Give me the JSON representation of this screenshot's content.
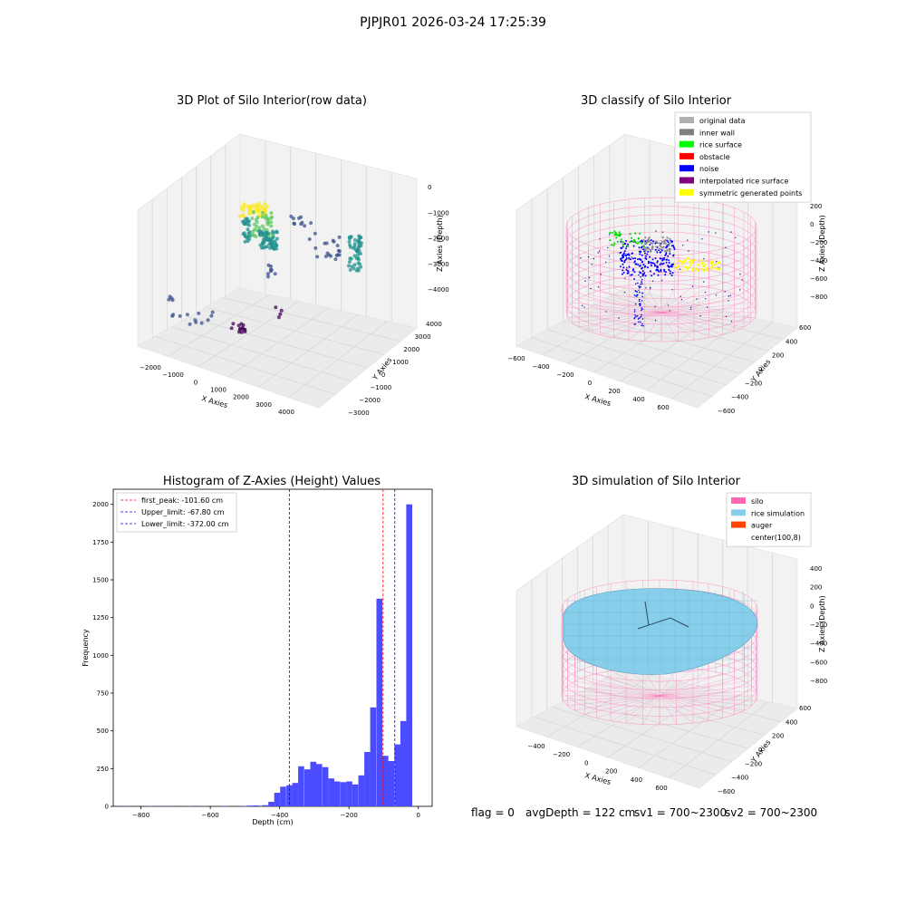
{
  "page": {
    "title": "PJPJR01 2026-03-24 17:25:39"
  },
  "footer": {
    "flag": "flag = 0",
    "avg_depth": "avgDepth = 122 cm",
    "sv1": "sv1 = 700~2300",
    "sv2": "sv2 = 700~2300"
  },
  "chart_data": [
    {
      "type": "scatter",
      "title": "3D Plot of Silo Interior(row data)",
      "xlabel": "X Axies",
      "ylabel": "Y Axies",
      "zlabel": "Z Axies (Depth)",
      "xticks": [
        "−2000",
        "−1000",
        "0",
        "1000",
        "2000",
        "3000",
        "4000"
      ],
      "yticks": [
        "−3000",
        "−2000",
        "−1000",
        "0",
        "1000",
        "2000",
        "3000",
        "4000"
      ],
      "zticks": [
        "0",
        "−1000",
        "−2000",
        "−3000",
        "−4000"
      ],
      "colormap": "viridis"
    },
    {
      "type": "scatter",
      "title": "3D classify of Silo Interior",
      "xlabel": "X Axies",
      "ylabel": "Y Axies",
      "zlabel": "Z Axies (Depth)",
      "xticks": [
        "−600",
        "−400",
        "−200",
        "0",
        "200",
        "400",
        "600"
      ],
      "yticks": [
        "−600",
        "−400",
        "−200",
        "0",
        "200",
        "400",
        "600"
      ],
      "zticks": [
        "200",
        "0",
        "−200",
        "−400",
        "−600",
        "−800"
      ],
      "legend_placement": "top-right",
      "legend": [
        {
          "name": "original data",
          "color": "#b0b0b0"
        },
        {
          "name": "inner wall",
          "color": "#808080"
        },
        {
          "name": "rice surface",
          "color": "#00ff00"
        },
        {
          "name": "obstacle",
          "color": "#ff0000"
        },
        {
          "name": "noise",
          "color": "#0000ff"
        },
        {
          "name": "interpolated rice surface",
          "color": "#800080"
        },
        {
          "name": "symmetric generated points",
          "color": "#ffff00"
        }
      ]
    },
    {
      "type": "bar",
      "title": "Histogram of Z-Axies (Height) Values",
      "xlabel": "Depth (cm)",
      "ylabel": "Frequency",
      "xlim": [
        -880,
        40
      ],
      "ylim": [
        0,
        2100
      ],
      "xticks": [
        "−800",
        "−600",
        "−400",
        "−200",
        "0"
      ],
      "yticks": [
        "0",
        "250",
        "500",
        "750",
        "1000",
        "1250",
        "1500",
        "1750",
        "2000"
      ],
      "bin_width": 17.3,
      "bins": [
        {
          "x": -845,
          "v": 2
        },
        {
          "x": -774,
          "v": 3
        },
        {
          "x": -746,
          "v": 2
        },
        {
          "x": -718,
          "v": 2
        },
        {
          "x": -660,
          "v": 2
        },
        {
          "x": -620,
          "v": 2
        },
        {
          "x": -560,
          "v": 3
        },
        {
          "x": -503,
          "v": 3
        },
        {
          "x": -485,
          "v": 5
        },
        {
          "x": -467,
          "v": 6
        },
        {
          "x": -442,
          "v": 8
        },
        {
          "x": -424,
          "v": 30
        },
        {
          "x": -407,
          "v": 90
        },
        {
          "x": -390,
          "v": 130
        },
        {
          "x": -372,
          "v": 140
        },
        {
          "x": -355,
          "v": 155
        },
        {
          "x": -338,
          "v": 265
        },
        {
          "x": -320,
          "v": 245
        },
        {
          "x": -303,
          "v": 295
        },
        {
          "x": -286,
          "v": 280
        },
        {
          "x": -268,
          "v": 260
        },
        {
          "x": -251,
          "v": 185
        },
        {
          "x": -234,
          "v": 165
        },
        {
          "x": -216,
          "v": 160
        },
        {
          "x": -199,
          "v": 165
        },
        {
          "x": -182,
          "v": 145
        },
        {
          "x": -164,
          "v": 205
        },
        {
          "x": -147,
          "v": 360
        },
        {
          "x": -130,
          "v": 655
        },
        {
          "x": -112,
          "v": 1375
        },
        {
          "x": -95,
          "v": 335
        },
        {
          "x": -78,
          "v": 300
        },
        {
          "x": -60,
          "v": 410
        },
        {
          "x": -43,
          "v": 565
        },
        {
          "x": -26,
          "v": 2000
        }
      ],
      "bar_color": "#4b4bff",
      "vlines": [
        {
          "name": "first_peak: -101.60 cm",
          "x": -101.6,
          "color": "#ff0000"
        },
        {
          "name": "Upper_limit: -67.80 cm",
          "x": -67.8,
          "color": "#0000ff"
        },
        {
          "name": "Lower_limit: -372.00 cm",
          "x": -372.0,
          "color": "#0000ff"
        }
      ],
      "legend_placement": "top-left"
    },
    {
      "type": "surface",
      "title": "3D simulation of Silo Interior",
      "xlabel": "X Axies",
      "ylabel": "Y Axies",
      "zlabel": "Z Axies (Depth)",
      "xticks": [
        "−400",
        "−200",
        "0",
        "200",
        "400",
        "600"
      ],
      "yticks": [
        "−600",
        "−400",
        "−200",
        "0",
        "200",
        "400",
        "600"
      ],
      "zticks": [
        "400",
        "200",
        "0",
        "−200",
        "−400",
        "−600",
        "−800"
      ],
      "legend_placement": "top-right",
      "legend": [
        {
          "name": "silo",
          "color": "#ff69b4"
        },
        {
          "name": "rice simulation",
          "color": "#87ceeb"
        },
        {
          "name": "auger",
          "color": "#ff4500"
        },
        {
          "name": "center(100,8)",
          "color": "#ffffff"
        }
      ]
    }
  ]
}
